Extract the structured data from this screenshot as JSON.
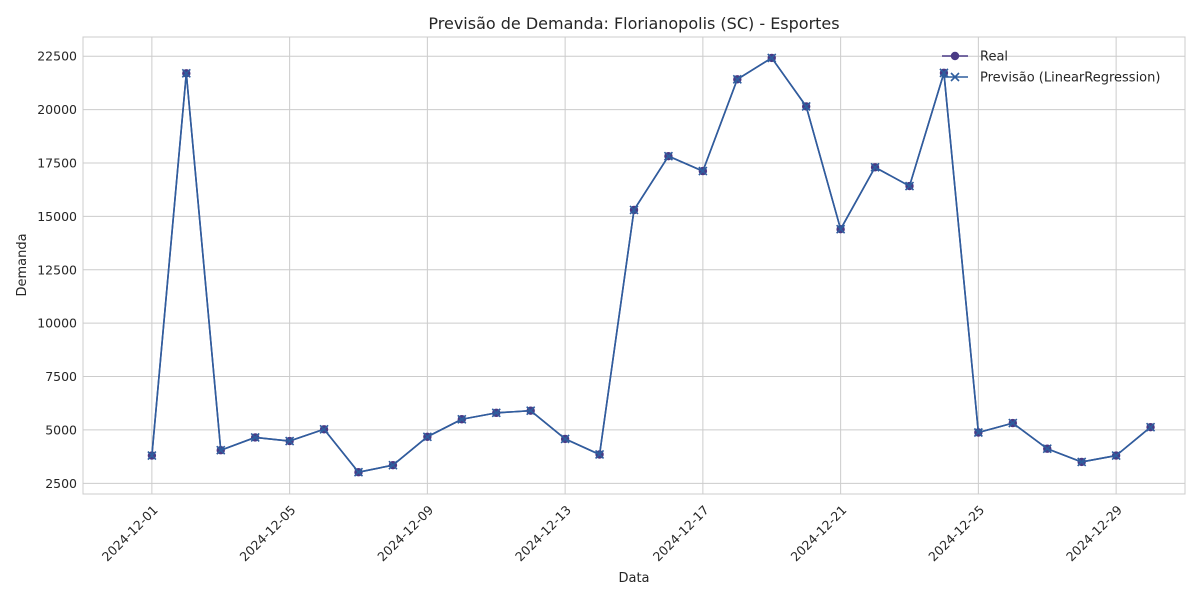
{
  "chart_data": {
    "type": "line",
    "title": "Previsão de Demanda: Florianopolis (SC) - Esportes",
    "xlabel": "Data",
    "ylabel": "Demanda",
    "ylim": [
      2000,
      23400
    ],
    "xlim": [
      "2024-11-29",
      "2024-12-31"
    ],
    "yticks": [
      2500,
      5000,
      7500,
      10000,
      12500,
      15000,
      17500,
      20000,
      22500
    ],
    "xticks": [
      "2024-12-01",
      "2024-12-05",
      "2024-12-09",
      "2024-12-13",
      "2024-12-17",
      "2024-12-21",
      "2024-12-25",
      "2024-12-29"
    ],
    "grid": true,
    "legend_position": "top-right",
    "x": [
      "2024-12-01",
      "2024-12-02",
      "2024-12-03",
      "2024-12-04",
      "2024-12-05",
      "2024-12-06",
      "2024-12-07",
      "2024-12-08",
      "2024-12-09",
      "2024-12-10",
      "2024-12-11",
      "2024-12-12",
      "2024-12-13",
      "2024-12-14",
      "2024-12-15",
      "2024-12-16",
      "2024-12-17",
      "2024-12-18",
      "2024-12-19",
      "2024-12-20",
      "2024-12-21",
      "2024-12-22",
      "2024-12-23",
      "2024-12-24",
      "2024-12-25",
      "2024-12-26",
      "2024-12-27",
      "2024-12-28",
      "2024-12-29",
      "2024-12-30"
    ],
    "series": [
      {
        "name": "Real",
        "marker": "circle",
        "color": "#4a3a85",
        "values": [
          3800,
          21700,
          4050,
          4650,
          4480,
          5030,
          3020,
          3350,
          4680,
          5500,
          5800,
          5900,
          4580,
          3850,
          15300,
          17820,
          17120,
          21420,
          22420,
          20150,
          14400,
          17300,
          16420,
          21720,
          4880,
          5320,
          4120,
          3500,
          3800,
          5130
        ]
      },
      {
        "name": "Previsão (LinearRegression)",
        "marker": "x",
        "color": "#2f5e9e",
        "values": [
          3800,
          21700,
          4050,
          4650,
          4480,
          5030,
          3020,
          3350,
          4680,
          5500,
          5800,
          5900,
          4580,
          3850,
          15300,
          17820,
          17120,
          21420,
          22420,
          20150,
          14400,
          17300,
          16420,
          21720,
          4880,
          5320,
          4120,
          3500,
          3800,
          5130
        ]
      }
    ]
  }
}
